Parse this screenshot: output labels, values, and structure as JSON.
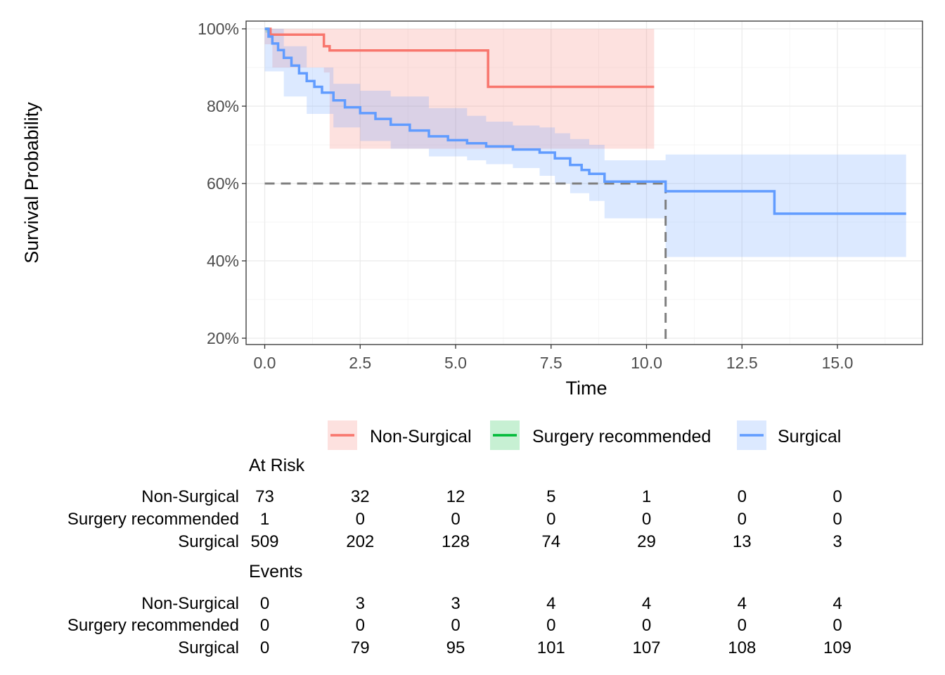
{
  "chart_data": {
    "type": "line",
    "subtype": "kaplan-meier",
    "xlabel": "Time",
    "ylabel": "Survival Probability",
    "xlim": [
      0,
      17.2
    ],
    "ylim": [
      0.18,
      1.02
    ],
    "x_ticks": [
      0,
      2.5,
      5,
      7.5,
      10,
      12.5,
      15
    ],
    "x_tick_labels": [
      "0.0",
      "2.5",
      "5.0",
      "7.5",
      "10.0",
      "12.5",
      "15.0"
    ],
    "y_ticks": [
      0.2,
      0.4,
      0.6,
      0.8,
      1.0
    ],
    "y_tick_labels": [
      "20%",
      "40%",
      "60%",
      "80%",
      "100%"
    ],
    "grid": true,
    "legend_position": "bottom",
    "median_reference": {
      "y": 0.6,
      "x": 10.5
    },
    "series": [
      {
        "name": "Non-Surgical",
        "color": "#F8766D",
        "step_x": [
          0,
          0.15,
          1.55,
          1.7,
          5.85,
          10.2
        ],
        "step_y": [
          1.0,
          0.985,
          0.955,
          0.944,
          0.85,
          0.85
        ],
        "ci_x": [
          0,
          0.2,
          1.55,
          1.7,
          5.85,
          10.2
        ],
        "ci_lower": [
          1.0,
          0.96,
          0.9,
          0.887,
          0.69,
          0.69
        ],
        "ci_upper": [
          1.0,
          1.0,
          1.0,
          1.0,
          1.0,
          1.0
        ]
      },
      {
        "name": "Surgery recommended",
        "color": "#00BA38",
        "step_x": [
          0.02,
          0.1
        ],
        "step_y": [
          1.0,
          1.0
        ],
        "ci_x": [
          0.02,
          0.1
        ],
        "ci_lower": [
          0.99,
          0.99
        ],
        "ci_upper": [
          1.0,
          1.0
        ]
      },
      {
        "name": "Surgical",
        "color": "#619CFF",
        "step_x": [
          0,
          0.1,
          0.2,
          0.35,
          0.5,
          0.7,
          0.9,
          1.1,
          1.3,
          1.5,
          1.8,
          2.1,
          2.5,
          2.9,
          3.3,
          3.8,
          4.3,
          4.8,
          5.3,
          5.8,
          6.5,
          7.2,
          7.6,
          8.0,
          8.3,
          8.5,
          8.9,
          10.5,
          13.35,
          16.8
        ],
        "step_y": [
          1.0,
          0.98,
          0.962,
          0.945,
          0.925,
          0.905,
          0.885,
          0.865,
          0.85,
          0.835,
          0.815,
          0.797,
          0.782,
          0.767,
          0.752,
          0.737,
          0.722,
          0.712,
          0.704,
          0.696,
          0.688,
          0.68,
          0.665,
          0.648,
          0.635,
          0.625,
          0.605,
          0.58,
          0.522,
          0.522
        ],
        "ci_x": [
          0,
          0.5,
          1.1,
          1.8,
          2.5,
          3.3,
          4.3,
          5.3,
          5.8,
          6.5,
          7.2,
          7.6,
          8.0,
          8.5,
          8.9,
          10.5,
          13.35,
          16.8
        ],
        "ci_lower": [
          1.0,
          0.89,
          0.825,
          0.78,
          0.745,
          0.71,
          0.69,
          0.67,
          0.66,
          0.65,
          0.64,
          0.62,
          0.6,
          0.575,
          0.555,
          0.51,
          0.41,
          0.41
        ],
        "ci_upper": [
          1.0,
          0.955,
          0.9,
          0.858,
          0.84,
          0.825,
          0.795,
          0.775,
          0.76,
          0.75,
          0.745,
          0.73,
          0.715,
          0.7,
          0.66,
          0.675,
          0.675,
          0.675
        ]
      }
    ],
    "risk_table": {
      "at_risk_title": "At Risk",
      "events_title": "Events",
      "groups": [
        "Non-Surgical",
        "Surgery recommended",
        "Surgical"
      ],
      "times": [
        0,
        2.5,
        5,
        7.5,
        10,
        12.5,
        15
      ],
      "at_risk": [
        [
          "73",
          "32",
          "12",
          "5",
          "1",
          "0",
          "0"
        ],
        [
          "1",
          "0",
          "0",
          "0",
          "0",
          "0",
          "0"
        ],
        [
          "509",
          "202",
          "128",
          "74",
          "29",
          "13",
          "3"
        ]
      ],
      "events": [
        [
          "0",
          "3",
          "3",
          "4",
          "4",
          "4",
          "4"
        ],
        [
          "0",
          "0",
          "0",
          "0",
          "0",
          "0",
          "0"
        ],
        [
          "0",
          "79",
          "95",
          "101",
          "107",
          "108",
          "109"
        ]
      ]
    }
  }
}
